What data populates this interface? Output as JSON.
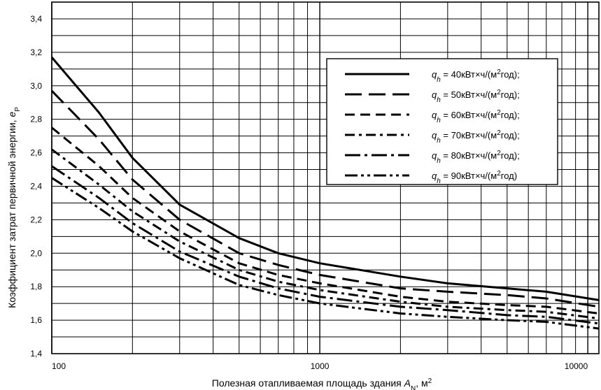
{
  "chart_data": {
    "type": "line",
    "xscale": "log",
    "xlim": [
      100,
      11000
    ],
    "ylim": [
      1.4,
      3.5
    ],
    "grid": true,
    "legend_position": "top-right",
    "xlabel": {
      "text": "Полезная отапливаемая площадь здания ",
      "var": "A",
      "sub": "N",
      "unit": ", м",
      "sup": "2"
    },
    "ylabel": {
      "text": "Коэффициент затрат первичной энергии, ",
      "var": "e",
      "sub": "P"
    },
    "x_ticks": [
      {
        "value": 100,
        "label": "100"
      },
      {
        "value": 1000,
        "label": "1000"
      },
      {
        "value": 10000,
        "label": "10000"
      }
    ],
    "y_ticks": [
      {
        "value": 1.4,
        "label": "1,4"
      },
      {
        "value": 1.6,
        "label": "1,6"
      },
      {
        "value": 1.8,
        "label": "1,8"
      },
      {
        "value": 2.0,
        "label": "2,0"
      },
      {
        "value": 2.2,
        "label": "2,2"
      },
      {
        "value": 2.4,
        "label": "2,4"
      },
      {
        "value": 2.6,
        "label": "2,6"
      },
      {
        "value": 2.8,
        "label": "2,8"
      },
      {
        "value": 3.0,
        "label": "3,0"
      },
      {
        "value": 3.2,
        "label": "3,2"
      },
      {
        "value": 3.4,
        "label": "3,4"
      }
    ],
    "series": [
      {
        "legend": {
          "var": "q",
          "sub": "h",
          "text": " = 40кВт×ч/(м",
          "sup": "2",
          "tail": "год);"
        },
        "dash": "solid",
        "x": [
          100,
          150,
          200,
          300,
          500,
          700,
          1000,
          2000,
          3000,
          5000,
          7000,
          11000
        ],
        "y": [
          3.17,
          2.84,
          2.57,
          2.29,
          2.09,
          2.0,
          1.94,
          1.86,
          1.82,
          1.79,
          1.77,
          1.72
        ]
      },
      {
        "legend": {
          "var": "q",
          "sub": "h",
          "text": " = 50кВт×ч/(м",
          "sup": "2",
          "tail": "год);"
        },
        "dash": "long-dash",
        "x": [
          100,
          150,
          200,
          300,
          500,
          700,
          1000,
          2000,
          3000,
          5000,
          7000,
          11000
        ],
        "y": [
          2.97,
          2.68,
          2.44,
          2.2,
          2.0,
          1.93,
          1.87,
          1.79,
          1.77,
          1.75,
          1.73,
          1.68
        ]
      },
      {
        "legend": {
          "var": "q",
          "sub": "h",
          "text": " = 60кВт×ч/(м",
          "sup": "2",
          "tail": "год);"
        },
        "dash": "dash",
        "x": [
          100,
          150,
          200,
          300,
          500,
          700,
          1000,
          2000,
          3000,
          5000,
          7000,
          11000
        ],
        "y": [
          2.75,
          2.52,
          2.33,
          2.13,
          1.94,
          1.87,
          1.82,
          1.74,
          1.71,
          1.69,
          1.68,
          1.64
        ]
      },
      {
        "legend": {
          "var": "q",
          "sub": "h",
          "text": " = 70кВт×ч/(м",
          "sup": "2",
          "tail": "год);"
        },
        "dash": "dash-dot",
        "x": [
          100,
          150,
          200,
          300,
          500,
          700,
          1000,
          2000,
          3000,
          5000,
          7000,
          11000
        ],
        "y": [
          2.62,
          2.41,
          2.25,
          2.07,
          1.9,
          1.83,
          1.78,
          1.71,
          1.68,
          1.66,
          1.65,
          1.61
        ]
      },
      {
        "legend": {
          "var": "q",
          "sub": "h",
          "text": " = 80кВт×ч/(м",
          "sup": "2",
          "tail": "год);"
        },
        "dash": "long-dash-dot",
        "x": [
          100,
          150,
          200,
          300,
          500,
          700,
          1000,
          2000,
          3000,
          5000,
          7000,
          11000
        ],
        "y": [
          2.52,
          2.33,
          2.18,
          2.01,
          1.86,
          1.79,
          1.74,
          1.68,
          1.66,
          1.63,
          1.62,
          1.58
        ]
      },
      {
        "legend": {
          "var": "q",
          "sub": "h",
          "text": " = 90кВт×ч/(м",
          "sup": "2",
          "tail": "год)"
        },
        "dash": "dash-dot-dot",
        "x": [
          100,
          150,
          200,
          300,
          500,
          700,
          1000,
          2000,
          3000,
          5000,
          7000,
          11000
        ],
        "y": [
          2.45,
          2.27,
          2.13,
          1.97,
          1.81,
          1.75,
          1.7,
          1.64,
          1.62,
          1.6,
          1.59,
          1.55
        ]
      }
    ]
  }
}
